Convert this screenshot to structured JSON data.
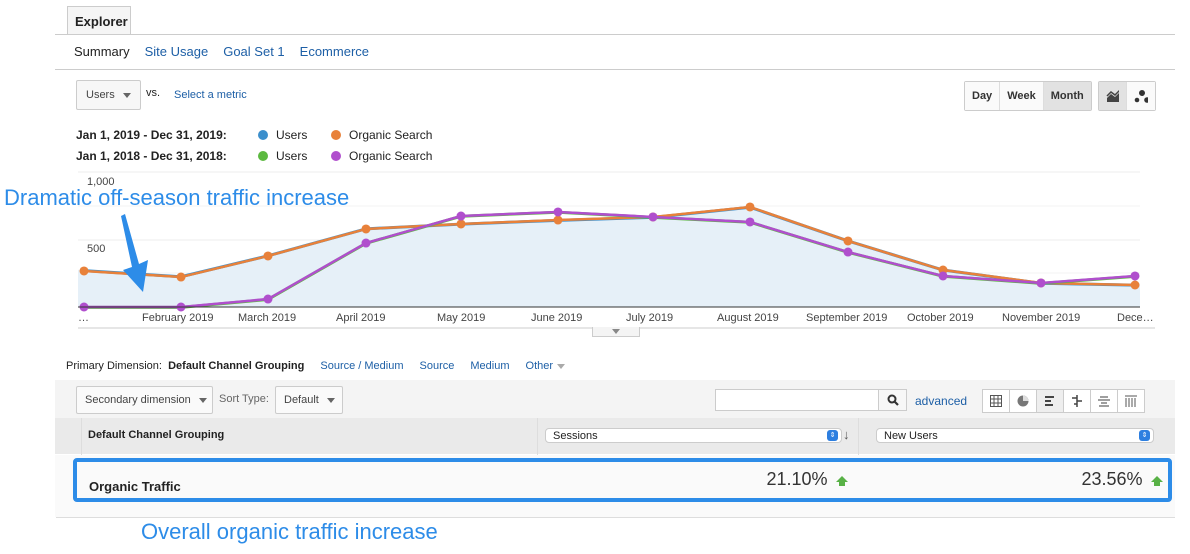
{
  "tabs": {
    "explorer": "Explorer"
  },
  "subtabs": [
    {
      "label": "Summary",
      "active": true
    },
    {
      "label": "Site Usage",
      "active": false
    },
    {
      "label": "Goal Set 1",
      "active": false
    },
    {
      "label": "Ecommerce",
      "active": false
    }
  ],
  "metric": {
    "selected": "Users",
    "vs": "vs.",
    "select_metric": "Select a metric"
  },
  "granularity": {
    "day": "Day",
    "week": "Week",
    "month": "Month",
    "active": "Month"
  },
  "legend": {
    "rows": [
      {
        "date": "Jan 1, 2019 - Dec 31, 2019:",
        "s1": "Users",
        "s1_color": "#3c8fcc",
        "s2": "Organic Search",
        "s2_color": "#e8813a"
      },
      {
        "date": "Jan 1, 2018 - Dec 31, 2018:",
        "s1": "Users",
        "s1_color": "#5cb940",
        "s2": "Organic Search",
        "s2_color": "#b04fcd"
      }
    ]
  },
  "annotations": {
    "top": "Dramatic off-season traffic increase",
    "bottom": "Overall organic traffic increase"
  },
  "chart_data": {
    "type": "line",
    "title": "",
    "xlabel": "",
    "ylabel": "",
    "ylim": [
      0,
      1000
    ],
    "yticks": [
      "500",
      "1,000"
    ],
    "categories": [
      "…",
      "February 2019",
      "March 2019",
      "April 2019",
      "May 2019",
      "June 2019",
      "July 2019",
      "August 2019",
      "September 2019",
      "October 2019",
      "November 2019",
      "Dece…"
    ],
    "series": [
      {
        "name": "Users (2019)",
        "color": "#3c8fcc",
        "values": [
          275,
          230,
          385,
          585,
          620,
          648,
          670,
          745,
          495,
          280,
          182,
          168
        ]
      },
      {
        "name": "Organic Search (2019)",
        "color": "#e8813a",
        "values": [
          267,
          222,
          378,
          578,
          615,
          644,
          667,
          741,
          489,
          274,
          178,
          163
        ]
      },
      {
        "name": "Users (2018)",
        "color": "#5cb940",
        "values": [
          3,
          3,
          62,
          478,
          678,
          708,
          670,
          634,
          411,
          234,
          181,
          233
        ]
      },
      {
        "name": "Organic Search (2018)",
        "color": "#b04fcd",
        "values": [
          0,
          0,
          59,
          474,
          674,
          704,
          667,
          630,
          407,
          230,
          178,
          230
        ]
      }
    ],
    "grid": true,
    "legend_position": "top"
  },
  "primary_dimension": {
    "label": "Primary Dimension:",
    "active": "Default Channel Grouping",
    "options": [
      "Source / Medium",
      "Source",
      "Medium",
      "Other"
    ]
  },
  "controls": {
    "secondary_dimension": "Secondary dimension",
    "sort_type_label": "Sort Type:",
    "sort_type": "Default",
    "search_placeholder": "",
    "advanced": "advanced"
  },
  "table": {
    "dim_header": "Default Channel Grouping",
    "col1": "Sessions",
    "col2": "New Users",
    "rows": [
      {
        "name": "Organic Traffic",
        "col1": "21.10%",
        "col2": "23.56%"
      }
    ]
  }
}
